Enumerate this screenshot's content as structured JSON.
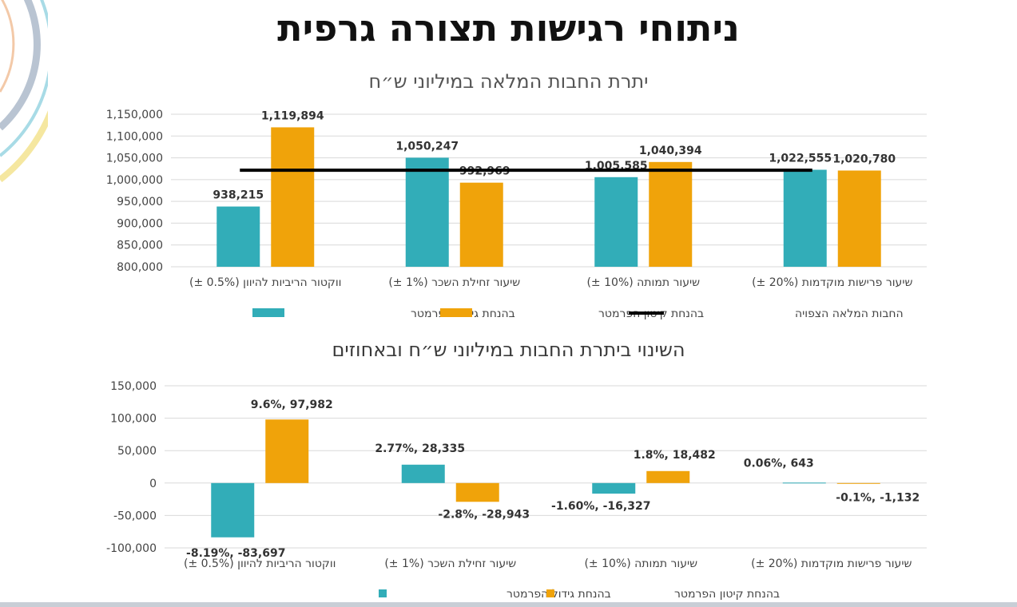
{
  "page": {
    "title": "ניתוחי רגישות תצורה גרפית"
  },
  "colors": {
    "teal": "#32adb8",
    "orange": "#f0a30a",
    "black": "#000000",
    "grid": "#d9d9d9",
    "deco": [
      "#f3c9a8",
      "#b9c4d2",
      "#a8dbe6",
      "#f5e7a0"
    ]
  },
  "chart_data": [
    {
      "type": "bar",
      "title": "יתרת החבות המלאה במיליוני ש״ח",
      "categories": [
        "ווקטור הריביות להיוון (0.5% ±)",
        "שיעור זחילת השכר (1% ±)",
        "שיעור תמותה (10% ±)",
        "שיעור פרישות מוקדמות (20% ±)"
      ],
      "series": [
        {
          "name": "בהנחת גידול הפרמטר",
          "color": "#32adb8",
          "values": [
            938215,
            1050247,
            1005585,
            1022555
          ],
          "labels": [
            "938,215",
            "1,050,247",
            "1,005,585",
            "1,022,555"
          ]
        },
        {
          "name": "בהנחת קיטון הפרמטר",
          "color": "#f0a30a",
          "values": [
            1119894,
            992969,
            1040394,
            1020780
          ],
          "labels": [
            "1,119,894",
            "992,969",
            "1,040,394",
            "1,020,780"
          ]
        }
      ],
      "reference_line": {
        "name": "החבות המלאה הצפויה",
        "value": 1021500
      },
      "ylim": [
        800000,
        1150000
      ],
      "yticks": [
        "800,000",
        "850,000",
        "900,000",
        "950,000",
        "1,000,000",
        "1,050,000",
        "1,100,000",
        "1,150,000"
      ],
      "ytick_values": [
        800000,
        850000,
        900000,
        950000,
        1000000,
        1050000,
        1100000,
        1150000
      ],
      "grid": true,
      "legend": "bottom"
    },
    {
      "type": "bar",
      "title": "השינוי ביתרת החבות במיליוני ש״ח ובאחוזים",
      "categories": [
        "ווקטור הריביות להיוון (0.5% ±)",
        "שיעור זחילת השכר (1% ±)",
        "שיעור תמותה (10% ±)",
        "שיעור פרישות מוקדמות (20% ±)"
      ],
      "series": [
        {
          "name": "בהנחת גידול הפרמטר",
          "color": "#32adb8",
          "values": [
            -83697,
            28335,
            -16327,
            643
          ],
          "labels": [
            "-8.19%, -83,697",
            "2.77%, 28,335",
            "-1.60%, -16,327",
            "0.06%, 643"
          ]
        },
        {
          "name": "בהנחת קיטון הפרמטר",
          "color": "#f0a30a",
          "values": [
            97982,
            -28943,
            18482,
            -1132
          ],
          "labels": [
            "9.6%, 97,982",
            "-2.8%, -28,943",
            "1.8%, 18,482",
            "-0.1%, -1,132"
          ]
        }
      ],
      "ylim": [
        -100000,
        150000
      ],
      "yticks": [
        "-100,000",
        "-50,000",
        "0",
        "50,000",
        "100,000",
        "150,000"
      ],
      "ytick_values": [
        -100000,
        -50000,
        0,
        50000,
        100000,
        150000
      ],
      "grid": true,
      "legend": "bottom"
    }
  ]
}
